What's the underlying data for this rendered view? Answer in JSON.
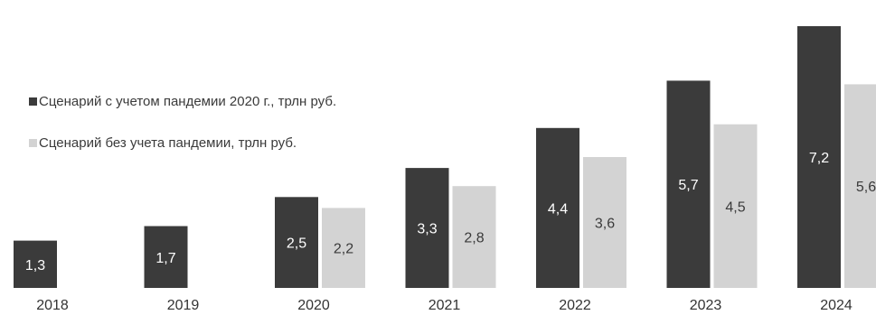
{
  "chart_data": {
    "type": "bar",
    "title": "",
    "xlabel": "",
    "ylabel": "",
    "ylim": [
      0,
      8
    ],
    "grid": false,
    "legend_position": "left",
    "categories": [
      "2018",
      "2019",
      "2020",
      "2021",
      "2022",
      "2023",
      "2024"
    ],
    "series": [
      {
        "name": "Сценарий с учетом пандемии 2020 г., трлн руб.",
        "color": "#3b3b3b",
        "values": [
          1.3,
          1.7,
          2.5,
          3.3,
          4.4,
          5.7,
          7.2
        ],
        "labels": [
          "1,3",
          "1,7",
          "2,5",
          "3,3",
          "4,4",
          "5,7",
          "7,2"
        ]
      },
      {
        "name": "Сценарий без учета пандемии, трлн руб.",
        "color": "#d3d3d3",
        "values": [
          null,
          null,
          2.2,
          2.8,
          3.6,
          4.5,
          5.6
        ],
        "labels": [
          null,
          null,
          "2,2",
          "2,8",
          "3,6",
          "4,5",
          "5,6"
        ]
      }
    ]
  }
}
